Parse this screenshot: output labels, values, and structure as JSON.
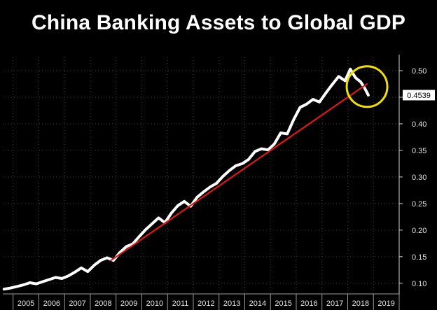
{
  "chart_data": {
    "type": "line",
    "title": "China Banking Assets to Global GDP",
    "xlabel": "",
    "ylabel": "",
    "x_ticks": [
      "2005",
      "2006",
      "2007",
      "2008",
      "2009",
      "2010",
      "2011",
      "2012",
      "2013",
      "2014",
      "2015",
      "2016",
      "2017",
      "2018",
      "2019"
    ],
    "y_ticks": [
      "0.10",
      "0.15",
      "0.20",
      "0.25",
      "0.30",
      "0.35",
      "0.40",
      "0.45",
      "0.50"
    ],
    "xlim": [
      2004.6,
      2020.0
    ],
    "ylim": [
      0.08,
      0.525
    ],
    "y_axis_side": "right",
    "grid": true,
    "last_value_label": "0.4539",
    "series": [
      {
        "color": "#ffffff",
        "points": [
          [
            2004.65,
            0.089
          ],
          [
            2004.9,
            0.091
          ],
          [
            2005.15,
            0.094
          ],
          [
            2005.4,
            0.097
          ],
          [
            2005.65,
            0.101
          ],
          [
            2005.9,
            0.099
          ],
          [
            2006.15,
            0.103
          ],
          [
            2006.4,
            0.107
          ],
          [
            2006.65,
            0.111
          ],
          [
            2006.9,
            0.109
          ],
          [
            2007.15,
            0.114
          ],
          [
            2007.4,
            0.121
          ],
          [
            2007.65,
            0.129
          ],
          [
            2007.9,
            0.122
          ],
          [
            2008.15,
            0.134
          ],
          [
            2008.4,
            0.143
          ],
          [
            2008.65,
            0.148
          ],
          [
            2008.9,
            0.143
          ],
          [
            2009.15,
            0.158
          ],
          [
            2009.4,
            0.169
          ],
          [
            2009.65,
            0.174
          ],
          [
            2009.9,
            0.188
          ],
          [
            2010.15,
            0.201
          ],
          [
            2010.4,
            0.212
          ],
          [
            2010.65,
            0.223
          ],
          [
            2010.9,
            0.214
          ],
          [
            2011.15,
            0.232
          ],
          [
            2011.4,
            0.246
          ],
          [
            2011.65,
            0.254
          ],
          [
            2011.9,
            0.245
          ],
          [
            2012.15,
            0.262
          ],
          [
            2012.4,
            0.272
          ],
          [
            2012.65,
            0.281
          ],
          [
            2012.9,
            0.288
          ],
          [
            2013.15,
            0.301
          ],
          [
            2013.4,
            0.312
          ],
          [
            2013.65,
            0.321
          ],
          [
            2013.9,
            0.325
          ],
          [
            2014.15,
            0.333
          ],
          [
            2014.4,
            0.348
          ],
          [
            2014.65,
            0.353
          ],
          [
            2014.9,
            0.351
          ],
          [
            2015.15,
            0.362
          ],
          [
            2015.4,
            0.383
          ],
          [
            2015.65,
            0.381
          ],
          [
            2015.9,
            0.408
          ],
          [
            2016.15,
            0.431
          ],
          [
            2016.4,
            0.437
          ],
          [
            2016.65,
            0.446
          ],
          [
            2016.9,
            0.441
          ],
          [
            2017.15,
            0.458
          ],
          [
            2017.4,
            0.474
          ],
          [
            2017.65,
            0.489
          ],
          [
            2017.9,
            0.481
          ],
          [
            2018.1,
            0.503
          ],
          [
            2018.3,
            0.487
          ],
          [
            2018.5,
            0.479
          ],
          [
            2018.65,
            0.468
          ],
          [
            2018.8,
            0.454
          ]
        ]
      },
      {
        "color": "#e01818",
        "points": [
          [
            2008.8,
            0.143
          ],
          [
            2018.75,
            0.475
          ]
        ]
      }
    ],
    "highlight": {
      "shape": "circle",
      "color": "#f0e000",
      "center": [
        2018.75,
        0.47
      ]
    }
  }
}
